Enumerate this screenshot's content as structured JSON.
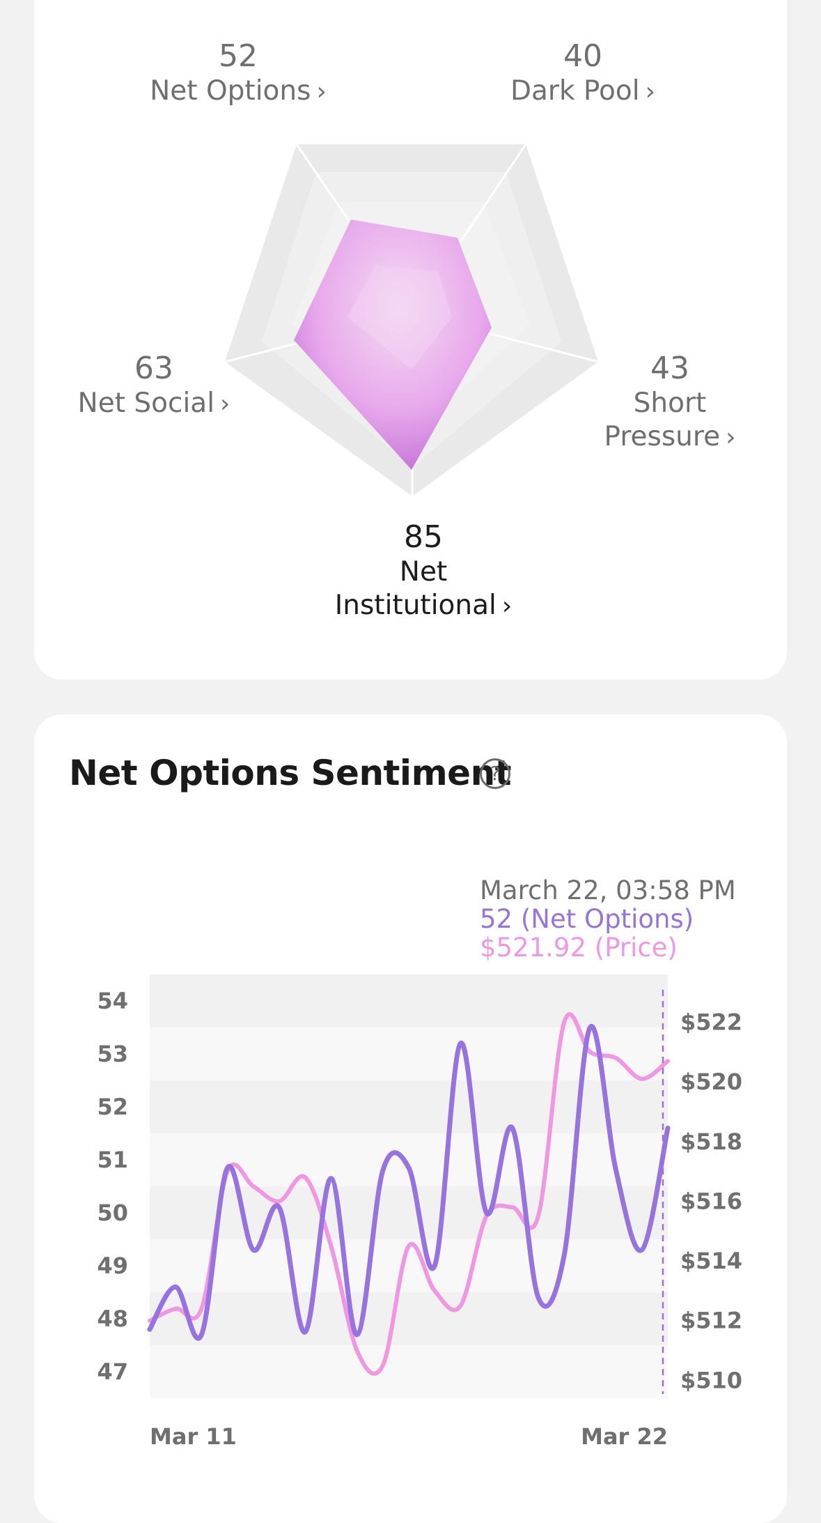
{
  "radar": {
    "axes": [
      {
        "key": "net_options",
        "value": "52",
        "label": "Net Options",
        "chevron": "›"
      },
      {
        "key": "dark_pool",
        "value": "40",
        "label": "Dark Pool",
        "chevron": "›"
      },
      {
        "key": "short_pressure",
        "value": "43",
        "label_line1": "Short",
        "label_line2": "Pressure",
        "chevron": "›"
      },
      {
        "key": "net_institutional",
        "value": "85",
        "label_line1": "Net",
        "label_line2": "Institutional",
        "chevron": "›"
      },
      {
        "key": "net_social",
        "value": "63",
        "label": "Net Social",
        "chevron": "›"
      }
    ],
    "colors": {
      "fill_outer": "#e2a3ec",
      "fill_inner": "#f4d8f2",
      "fill_bottom": "#b866cf",
      "grid": "#e6e6e6"
    }
  },
  "sentiment": {
    "title": "Net Options Sentiment",
    "help_icon": "question-circle-icon",
    "tooltip": {
      "date": "March 22, 03:58 PM",
      "options": "52 (Net Options)",
      "price": "$521.92 (Price)"
    },
    "colors": {
      "options_line": "#9673e0",
      "price_line": "#f196e3",
      "date": "#6f6f6f"
    }
  },
  "chart_data": {
    "type": "line",
    "x_start": "Mar 11",
    "x_end": "Mar 22",
    "xtick_labels": [
      "Mar 11",
      "Mar 22"
    ],
    "ytick_left": [
      "54",
      "53",
      "52",
      "51",
      "50",
      "49",
      "48",
      "47"
    ],
    "ytick_right": [
      "$522",
      "$520",
      "$518",
      "$516",
      "$514",
      "$512",
      "$510"
    ],
    "ylim_left": [
      46.5,
      54.5
    ],
    "ylim_right": [
      509.4,
      523.6
    ],
    "series": [
      {
        "name": "Net Options",
        "axis": "left",
        "color": "#9673e0",
        "values": [
          47.8,
          48.6,
          47.7,
          50.85,
          49.3,
          50.1,
          47.75,
          50.65,
          47.7,
          50.8,
          50.85,
          49.0,
          53.2,
          50.0,
          51.6,
          48.4,
          49.2,
          53.5,
          50.8,
          49.3,
          51.6
        ]
      },
      {
        "name": "Price",
        "axis": "right",
        "color": "#f196e3",
        "values": [
          512.0,
          512.4,
          512.4,
          517.0,
          516.5,
          516.0,
          516.8,
          514.5,
          511.0,
          510.5,
          514.5,
          513.0,
          512.5,
          515.5,
          515.8,
          515.5,
          522.0,
          521.0,
          520.8,
          520.1,
          520.7
        ]
      }
    ]
  }
}
